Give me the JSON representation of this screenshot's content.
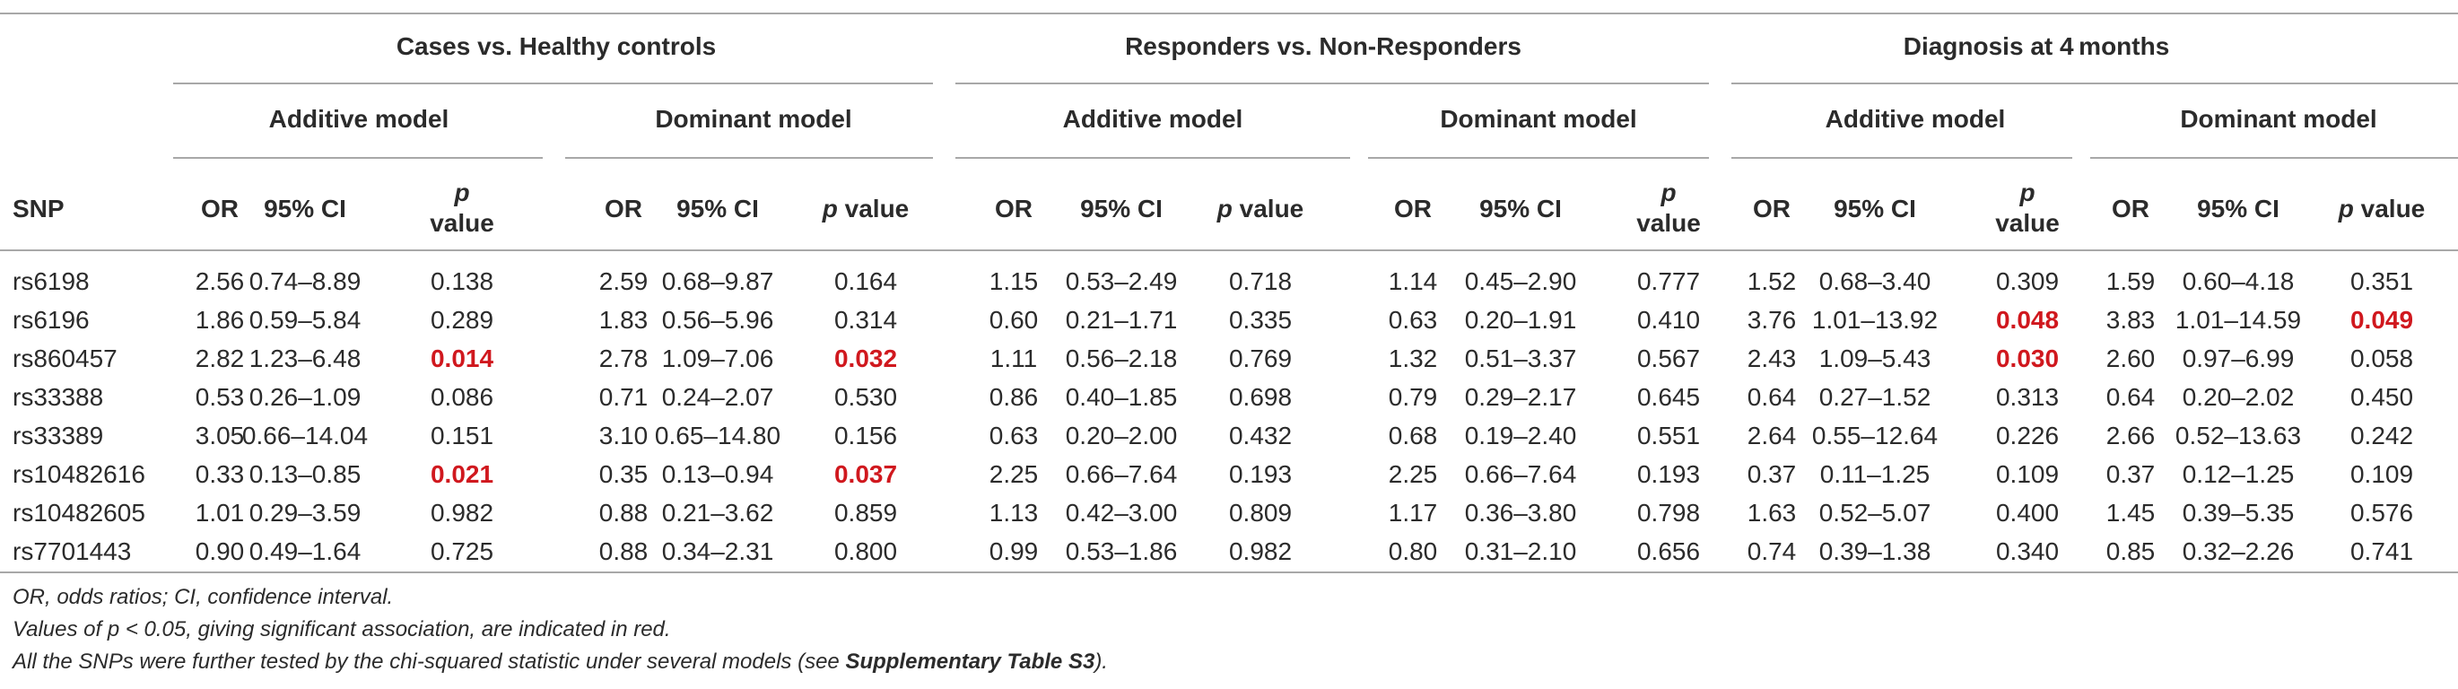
{
  "groups": [
    {
      "title": "Cases vs. Healthy controls",
      "models": [
        "Additive model",
        "Dominant model"
      ]
    },
    {
      "title": "Responders vs. Non-Responders",
      "models": [
        "Additive model",
        "Dominant model"
      ]
    },
    {
      "title": "Diagnosis at 4 months",
      "models": [
        "Additive model",
        "Dominant model"
      ]
    }
  ],
  "columns": {
    "snp": "SNP",
    "or": "OR",
    "ci": "95% CI",
    "p_italic": "p",
    "p_value": "value",
    "p_inline": "p value"
  },
  "rows": [
    {
      "snp": "rs6198",
      "cells": [
        [
          "2.56",
          "0.74–8.89",
          "0.138"
        ],
        [
          "2.59",
          "0.68–9.87",
          "0.164"
        ],
        [
          "1.15",
          "0.53–2.49",
          "0.718"
        ],
        [
          "1.14",
          "0.45–2.90",
          "0.777"
        ],
        [
          "1.52",
          "0.68–3.40",
          "0.309"
        ],
        [
          "1.59",
          "0.60–4.18",
          "0.351"
        ]
      ]
    },
    {
      "snp": "rs6196",
      "cells": [
        [
          "1.86",
          "0.59–5.84",
          "0.289"
        ],
        [
          "1.83",
          "0.56–5.96",
          "0.314"
        ],
        [
          "0.60",
          "0.21–1.71",
          "0.335"
        ],
        [
          "0.63",
          "0.20–1.91",
          "0.410"
        ],
        [
          "3.76",
          "1.01–13.92",
          "0.048"
        ],
        [
          "3.83",
          "1.01–14.59",
          "0.049"
        ]
      ]
    },
    {
      "snp": "rs860457",
      "cells": [
        [
          "2.82",
          "1.23–6.48",
          "0.014"
        ],
        [
          "2.78",
          "1.09–7.06",
          "0.032"
        ],
        [
          "1.11",
          "0.56–2.18",
          "0.769"
        ],
        [
          "1.32",
          "0.51–3.37",
          "0.567"
        ],
        [
          "2.43",
          "1.09–5.43",
          "0.030"
        ],
        [
          "2.60",
          "0.97–6.99",
          "0.058"
        ]
      ]
    },
    {
      "snp": "rs33388",
      "cells": [
        [
          "0.53",
          "0.26–1.09",
          "0.086"
        ],
        [
          "0.71",
          "0.24–2.07",
          "0.530"
        ],
        [
          "0.86",
          "0.40–1.85",
          "0.698"
        ],
        [
          "0.79",
          "0.29–2.17",
          "0.645"
        ],
        [
          "0.64",
          "0.27–1.52",
          "0.313"
        ],
        [
          "0.64",
          "0.20–2.02",
          "0.450"
        ]
      ]
    },
    {
      "snp": "rs33389",
      "cells": [
        [
          "3.05",
          "0.66–14.04",
          "0.151"
        ],
        [
          "3.10",
          "0.65–14.80",
          "0.156"
        ],
        [
          "0.63",
          "0.20–2.00",
          "0.432"
        ],
        [
          "0.68",
          "0.19–2.40",
          "0.551"
        ],
        [
          "2.64",
          "0.55–12.64",
          "0.226"
        ],
        [
          "2.66",
          "0.52–13.63",
          "0.242"
        ]
      ]
    },
    {
      "snp": "rs10482616",
      "cells": [
        [
          "0.33",
          "0.13–0.85",
          "0.021"
        ],
        [
          "0.35",
          "0.13–0.94",
          "0.037"
        ],
        [
          "2.25",
          "0.66–7.64",
          "0.193"
        ],
        [
          "2.25",
          "0.66–7.64",
          "0.193"
        ],
        [
          "0.37",
          "0.11–1.25",
          "0.109"
        ],
        [
          "0.37",
          "0.12–1.25",
          "0.109"
        ]
      ]
    },
    {
      "snp": "rs10482605",
      "cells": [
        [
          "1.01",
          "0.29–3.59",
          "0.982"
        ],
        [
          "0.88",
          "0.21–3.62",
          "0.859"
        ],
        [
          "1.13",
          "0.42–3.00",
          "0.809"
        ],
        [
          "1.17",
          "0.36–3.80",
          "0.798"
        ],
        [
          "1.63",
          "0.52–5.07",
          "0.400"
        ],
        [
          "1.45",
          "0.39–5.35",
          "0.576"
        ]
      ]
    },
    {
      "snp": "rs7701443",
      "cells": [
        [
          "0.90",
          "0.49–1.64",
          "0.725"
        ],
        [
          "0.88",
          "0.34–2.31",
          "0.800"
        ],
        [
          "0.99",
          "0.53–1.86",
          "0.982"
        ],
        [
          "0.80",
          "0.31–2.10",
          "0.656"
        ],
        [
          "0.74",
          "0.39–1.38",
          "0.340"
        ],
        [
          "0.85",
          "0.32–2.26",
          "0.741"
        ]
      ]
    }
  ],
  "significant": [
    {
      "row": 1,
      "block": 4
    },
    {
      "row": 1,
      "block": 5
    },
    {
      "row": 2,
      "block": 0
    },
    {
      "row": 2,
      "block": 1
    },
    {
      "row": 2,
      "block": 4
    },
    {
      "row": 5,
      "block": 0
    },
    {
      "row": 5,
      "block": 1
    }
  ],
  "significant_color": "#d0181e",
  "footnotes": {
    "line1": "OR, odds ratios; CI, confidence interval.",
    "line2": "Values of p < 0.05, giving significant association, are indicated in red.",
    "line3_prefix": "All the SNPs were further tested by the chi-squared statistic under several models (see ",
    "line3_bold": "Supplementary Table S3",
    "line3_suffix": ")."
  }
}
